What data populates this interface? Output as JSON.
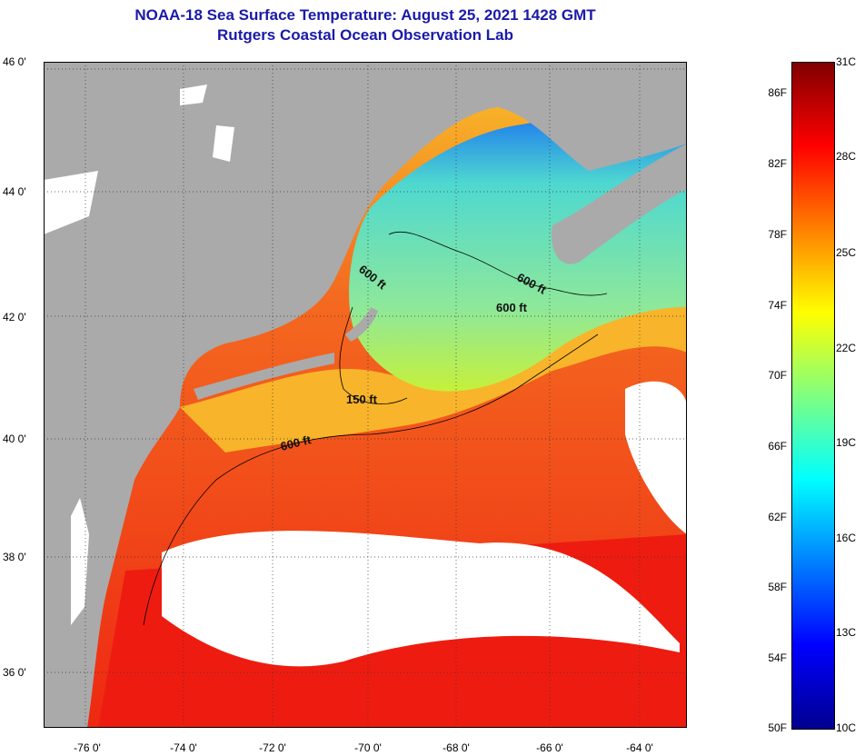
{
  "title": {
    "line1": "NOAA-18 Sea Surface Temperature:  August 25, 2021 1428 GMT",
    "line2": "Rutgers Coastal Ocean Observation Lab"
  },
  "map": {
    "latitude_labels": [
      "46 0'",
      "44 0'",
      "42 0'",
      "40 0'",
      "38 0'",
      "36 0'"
    ],
    "longitude_labels": [
      "-76 0'",
      "-74 0'",
      "-72 0'",
      "-70 0'",
      "-68 0'",
      "-66 0'",
      "-64 0'"
    ],
    "isobath_labels": [
      "600 ft",
      "600 ft",
      "600 ft",
      "150 ft",
      "600 ft"
    ],
    "colors": {
      "land": "#aaaaaa",
      "cloud": "#ffffff",
      "warm_ocean": "#f24a1e",
      "hot_ocean": "#ee1c10",
      "mild_ocean": "#f8b42a",
      "cool_ocean": "#c6f03a",
      "cold_ocean": "#4ed8d0",
      "coldest_ocean": "#1e7aee"
    }
  },
  "colorbar": {
    "fahrenheit_labels": [
      "86F",
      "82F",
      "78F",
      "74F",
      "70F",
      "66F",
      "62F",
      "58F",
      "54F",
      "50F"
    ],
    "celsius_labels": [
      "31C",
      "28C",
      "25C",
      "22C",
      "19C",
      "16C",
      "13C",
      "10C"
    ],
    "gradient_colors": [
      "#00008f",
      "#0000ff",
      "#0080ff",
      "#00ffff",
      "#80ff80",
      "#ffff00",
      "#ff8000",
      "#ff0000",
      "#800000"
    ]
  }
}
